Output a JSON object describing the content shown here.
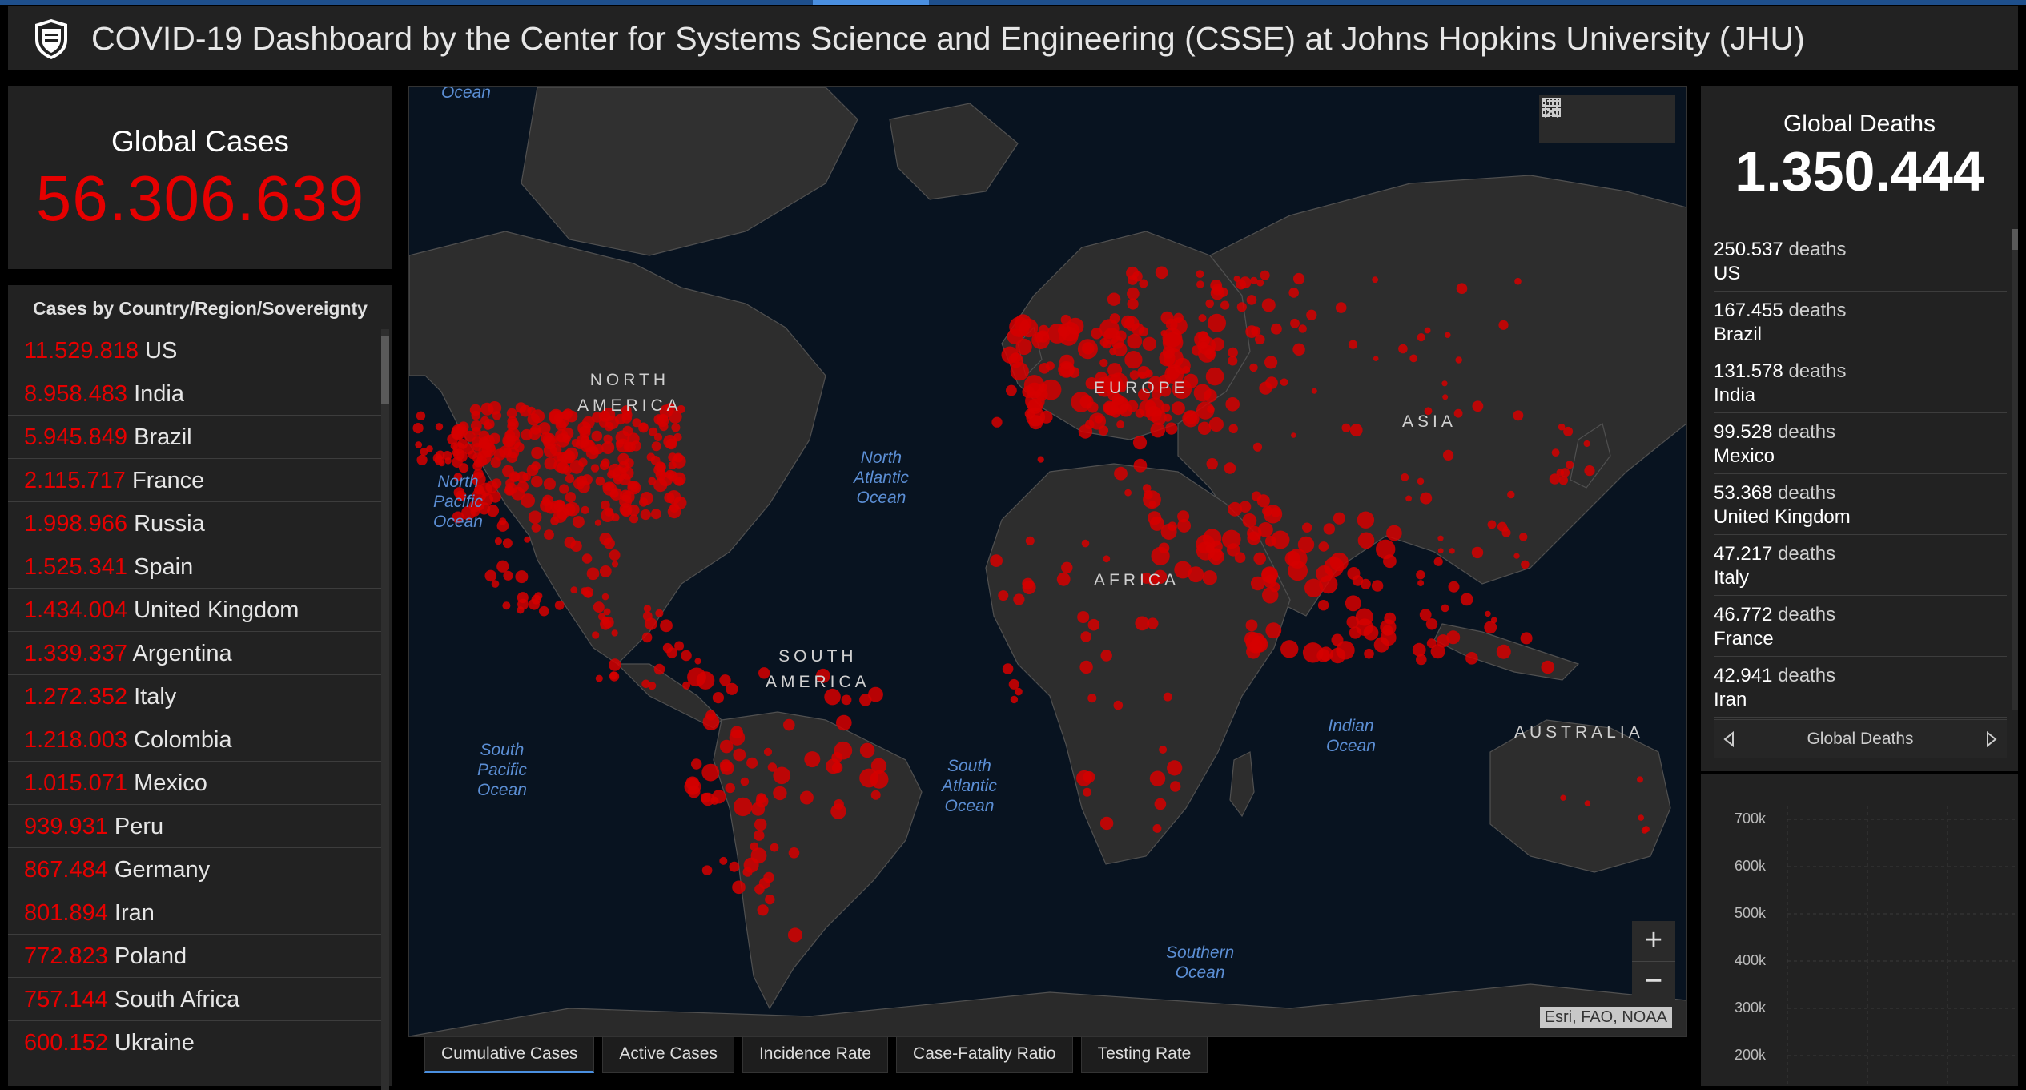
{
  "header": {
    "title": "COVID-19 Dashboard by the Center for Systems Science and Engineering (CSSE) at Johns Hopkins University (JHU)",
    "logo_icon": "jhu-shield-icon"
  },
  "global_cases": {
    "label": "Global Cases",
    "value": "56.306.639"
  },
  "cases_list": {
    "heading": "Cases by Country/Region/Sovereignty",
    "items": [
      {
        "value": "11.529.818",
        "country": "US"
      },
      {
        "value": "8.958.483",
        "country": "India"
      },
      {
        "value": "5.945.849",
        "country": "Brazil"
      },
      {
        "value": "2.115.717",
        "country": "France"
      },
      {
        "value": "1.998.966",
        "country": "Russia"
      },
      {
        "value": "1.525.341",
        "country": "Spain"
      },
      {
        "value": "1.434.004",
        "country": "United Kingdom"
      },
      {
        "value": "1.339.337",
        "country": "Argentina"
      },
      {
        "value": "1.272.352",
        "country": "Italy"
      },
      {
        "value": "1.218.003",
        "country": "Colombia"
      },
      {
        "value": "1.015.071",
        "country": "Mexico"
      },
      {
        "value": "939.931",
        "country": "Peru"
      },
      {
        "value": "867.484",
        "country": "Germany"
      },
      {
        "value": "801.894",
        "country": "Iran"
      },
      {
        "value": "772.823",
        "country": "Poland"
      },
      {
        "value": "757.144",
        "country": "South Africa"
      },
      {
        "value": "600.152",
        "country": "Ukraine"
      }
    ]
  },
  "map": {
    "oceans": [
      {
        "id": "arctic",
        "label": "Ocean"
      },
      {
        "id": "north-pacific",
        "label": "North\nPacific\nOcean"
      },
      {
        "id": "north-atlantic",
        "label": "North\nAtlantic\nOcean"
      },
      {
        "id": "south-pacific",
        "label": "South\nPacific\nOcean"
      },
      {
        "id": "south-atlantic",
        "label": "South\nAtlantic\nOcean"
      },
      {
        "id": "indian",
        "label": "Indian\nOcean"
      },
      {
        "id": "southern",
        "label": "Southern\nOcean"
      }
    ],
    "continents": [
      {
        "id": "north-america",
        "label": "NORTH\nAMERICA"
      },
      {
        "id": "europe",
        "label": "EUROPE"
      },
      {
        "id": "asia",
        "label": "ASIA"
      },
      {
        "id": "africa",
        "label": "AFRICA"
      },
      {
        "id": "south-america",
        "label": "SOUTH\nAMERICA"
      },
      {
        "id": "australia",
        "label": "AUSTRALIA"
      }
    ],
    "attribution": "Esri, FAO, NOAA",
    "zoom_in": "+",
    "zoom_out": "−",
    "tools": [
      "bookmark-icon",
      "legend-list-icon",
      "basemap-gallery-icon"
    ]
  },
  "tabs": [
    {
      "label": "Cumulative Cases",
      "active": true
    },
    {
      "label": "Active Cases",
      "active": false
    },
    {
      "label": "Incidence Rate",
      "active": false
    },
    {
      "label": "Case-Fatality Ratio",
      "active": false
    },
    {
      "label": "Testing Rate",
      "active": false
    }
  ],
  "global_deaths": {
    "label": "Global Deaths",
    "value": "1.350.444",
    "unit": "deaths",
    "items": [
      {
        "value": "250.537",
        "country": "US"
      },
      {
        "value": "167.455",
        "country": "Brazil"
      },
      {
        "value": "131.578",
        "country": "India"
      },
      {
        "value": "99.528",
        "country": "Mexico"
      },
      {
        "value": "53.368",
        "country": "United Kingdom"
      },
      {
        "value": "47.217",
        "country": "Italy"
      },
      {
        "value": "46.772",
        "country": "France"
      },
      {
        "value": "42.941",
        "country": "Iran"
      }
    ],
    "nav_label": "Global Deaths"
  },
  "chart_data": {
    "type": "line",
    "y_ticks": [
      "700k",
      "600k",
      "500k",
      "400k",
      "300k",
      "200k"
    ]
  },
  "colors": {
    "accent_red": "#e60000",
    "panel_bg": "#222222",
    "map_water": "#081320",
    "land": "#2d2d2d",
    "tab_active": "#4a8fe0"
  }
}
